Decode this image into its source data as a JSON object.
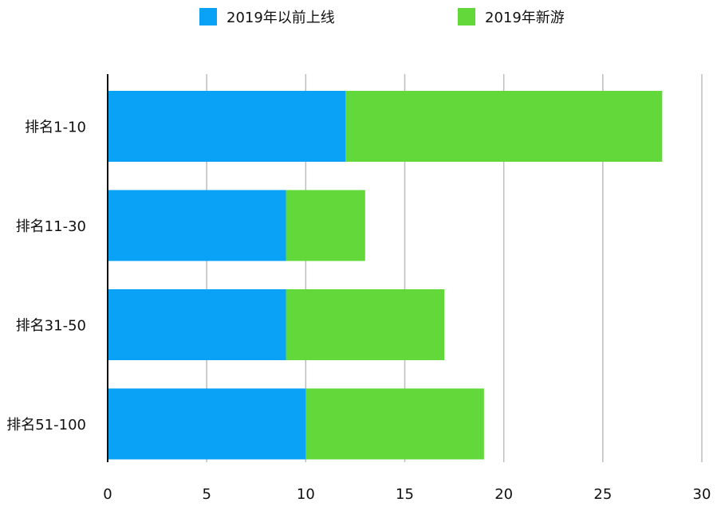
{
  "chart_data": {
    "type": "bar",
    "orientation": "horizontal",
    "stacked": true,
    "categories": [
      "排名1-10",
      "排名11-30",
      "排名31-50",
      "排名51-100"
    ],
    "series": [
      {
        "name": "2019年以前上线",
        "values": [
          12,
          9,
          9,
          10
        ],
        "color": "#0aa2f6"
      },
      {
        "name": "2019年新游",
        "values": [
          16,
          4,
          8,
          9
        ],
        "color": "#63d83a"
      }
    ],
    "xlim": [
      0,
      30
    ],
    "xticks": [
      "0",
      "5",
      "10",
      "15",
      "20",
      "25",
      "30"
    ],
    "grid": true,
    "legend_position": "top"
  }
}
